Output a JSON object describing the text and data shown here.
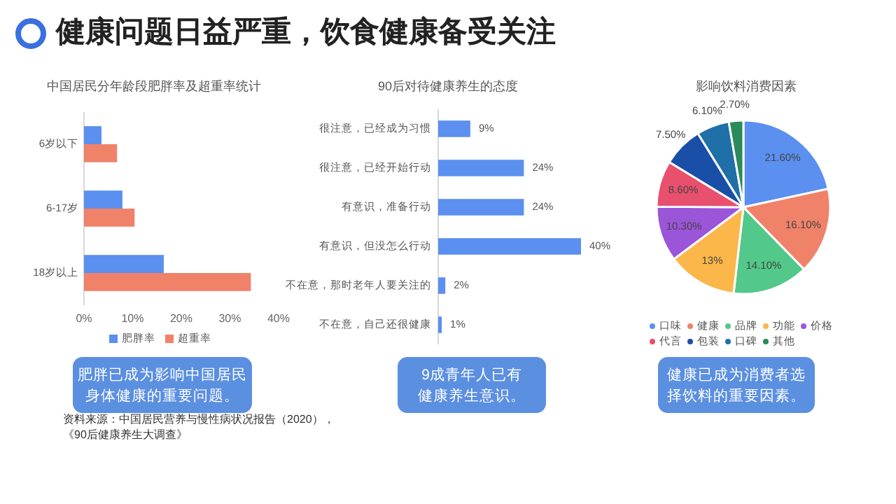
{
  "chart_data": [
    {
      "type": "other",
      "title": "健康问题日益严重，饮食健康备受关注",
      "annotations": [
        "资料来源：中国居民营养与慢性病状况报告（2020），",
        "《90后健康养生大调查》"
      ]
    },
    {
      "type": "bar",
      "orientation": "horizontal",
      "title": "中国居民分年龄段肥胖率及超重率统计",
      "categories": [
        "6岁以下",
        "6-17岁",
        "18岁以上"
      ],
      "series": [
        {
          "name": "肥胖率",
          "color": "#5b8ff0",
          "values": [
            3.6,
            7.9,
            16.4
          ]
        },
        {
          "name": "超重率",
          "color": "#f0826a",
          "values": [
            6.8,
            10.4,
            34.3
          ]
        }
      ],
      "xlim": [
        0,
        40
      ],
      "xticks": [
        {
          "value": 0,
          "label": "0%"
        },
        {
          "value": 10,
          "label": "10%"
        },
        {
          "value": 20,
          "label": "20%"
        },
        {
          "value": 30,
          "label": "30%"
        },
        {
          "value": 40,
          "label": "40%"
        }
      ],
      "legend": "bottom",
      "grid": false,
      "annotations": [
        "肥胖已成为影响中国居民身体健康的重要问题。"
      ]
    },
    {
      "type": "bar",
      "orientation": "horizontal",
      "title": "90后对待健康养生的态度",
      "categories": [
        "很注意，已经成为习惯",
        "很注意，已经开始行动",
        "有意识，准备行动",
        "有意识，但没怎么行动",
        "不在意，那时老年人要关注的",
        "不在意，自己还很健康"
      ],
      "values": [
        9,
        24,
        24,
        40,
        2,
        1
      ],
      "value_labels": [
        "9%",
        "24%",
        "24%",
        "40%",
        "2%",
        "1%"
      ],
      "color": "#5b8ff0",
      "annotations": [
        "9成青年人已有健康养生意识。"
      ]
    },
    {
      "type": "pie",
      "title": "影响饮料消费因素",
      "categories": [
        "口味",
        "健康",
        "品牌",
        "功能",
        "价格",
        "代言",
        "包装",
        "口碑",
        "其他"
      ],
      "values": [
        21.6,
        16.1,
        14.1,
        13,
        10.3,
        8.6,
        7.5,
        6.1,
        2.7
      ],
      "value_labels": [
        "21.60%",
        "16.10%",
        "14.10%",
        "13%",
        "10.30%",
        "8.60%",
        "7.50%",
        "6.10%",
        "2.70%"
      ],
      "colors": [
        "#5b8ff0",
        "#f0826a",
        "#52c88a",
        "#fbb74a",
        "#9b55d8",
        "#e8506e",
        "#1a4fa8",
        "#1f6fa8",
        "#2b8a5a"
      ],
      "legend": "bottom",
      "annotations": [
        "健康已成为消费者选择饮料的重要因素。"
      ]
    }
  ]
}
